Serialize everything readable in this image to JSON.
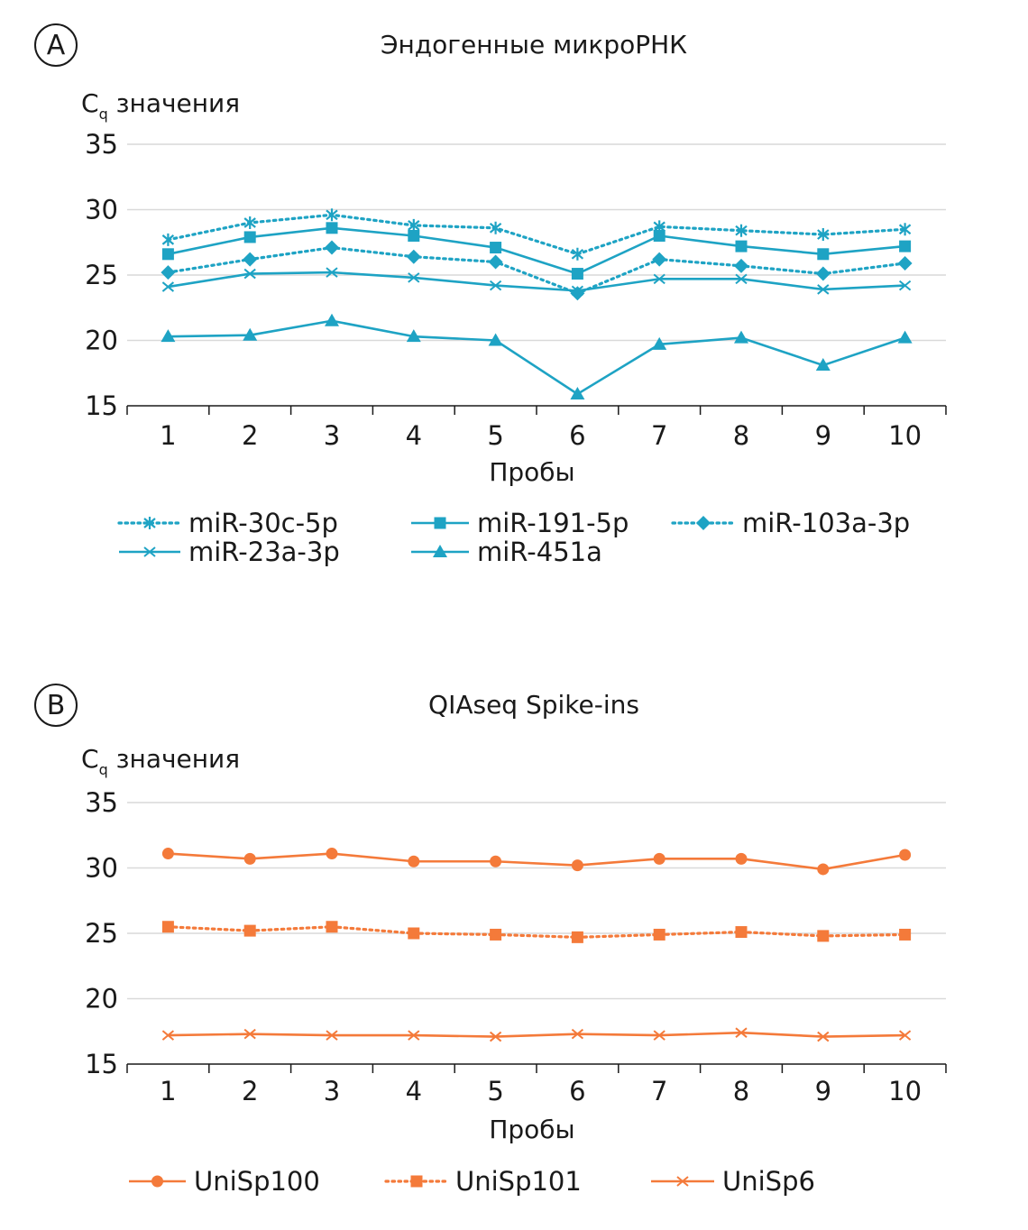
{
  "chart_data": [
    {
      "type": "line",
      "panel_label": "A",
      "title": "Эндогенные микроРНК",
      "ylabel_main": "C",
      "ylabel_sub": "q",
      "ylabel_rest": " значения",
      "xlabel": "Пробы",
      "categories": [
        "1",
        "2",
        "3",
        "4",
        "5",
        "6",
        "7",
        "8",
        "9",
        "10"
      ],
      "ylim": [
        15,
        35
      ],
      "yticks": [
        15,
        20,
        25,
        30,
        35
      ],
      "grid": true,
      "legend_position": "bottom",
      "color": "#1ea3c4",
      "series": [
        {
          "name": "miR-30c-5p",
          "marker": "asterisk",
          "dash": "dotted",
          "values": [
            27.7,
            29.0,
            29.6,
            28.8,
            28.6,
            26.6,
            28.7,
            28.4,
            28.1,
            28.5
          ]
        },
        {
          "name": "miR-191-5p",
          "marker": "square",
          "dash": "solid",
          "values": [
            26.6,
            27.9,
            28.6,
            28.0,
            27.1,
            25.1,
            28.0,
            27.2,
            26.6,
            27.2
          ]
        },
        {
          "name": "miR-103a-3p",
          "marker": "diamond",
          "dash": "dotted",
          "values": [
            25.2,
            26.2,
            27.1,
            26.4,
            26.0,
            23.6,
            26.2,
            25.7,
            25.1,
            25.9
          ]
        },
        {
          "name": "miR-23a-3p",
          "marker": "x",
          "dash": "solid",
          "values": [
            24.1,
            25.1,
            25.2,
            24.8,
            24.2,
            23.8,
            24.7,
            24.7,
            23.9,
            24.2
          ]
        },
        {
          "name": "miR-451a",
          "marker": "triangle",
          "dash": "solid",
          "values": [
            20.3,
            20.4,
            21.5,
            20.3,
            20.0,
            15.9,
            19.7,
            20.2,
            18.1,
            20.2
          ]
        }
      ]
    },
    {
      "type": "line",
      "panel_label": "B",
      "title": "QIAseq Spike-ins",
      "ylabel_main": "C",
      "ylabel_sub": "q",
      "ylabel_rest": " значения",
      "xlabel": "Пробы",
      "categories": [
        "1",
        "2",
        "3",
        "4",
        "5",
        "6",
        "7",
        "8",
        "9",
        "10"
      ],
      "ylim": [
        15,
        35
      ],
      "yticks": [
        15,
        20,
        25,
        30,
        35
      ],
      "grid": true,
      "legend_position": "bottom",
      "color": "#f47a3a",
      "series": [
        {
          "name": "UniSp100",
          "marker": "circle",
          "dash": "solid",
          "values": [
            31.1,
            30.7,
            31.1,
            30.5,
            30.5,
            30.2,
            30.7,
            30.7,
            29.9,
            31.0
          ]
        },
        {
          "name": "UniSp101",
          "marker": "square",
          "dash": "dotted",
          "values": [
            25.5,
            25.2,
            25.5,
            25.0,
            24.9,
            24.7,
            24.9,
            25.1,
            24.8,
            24.9
          ]
        },
        {
          "name": "UniSp6",
          "marker": "x",
          "dash": "solid",
          "values": [
            17.2,
            17.3,
            17.2,
            17.2,
            17.1,
            17.3,
            17.2,
            17.4,
            17.1,
            17.2
          ]
        }
      ]
    }
  ]
}
